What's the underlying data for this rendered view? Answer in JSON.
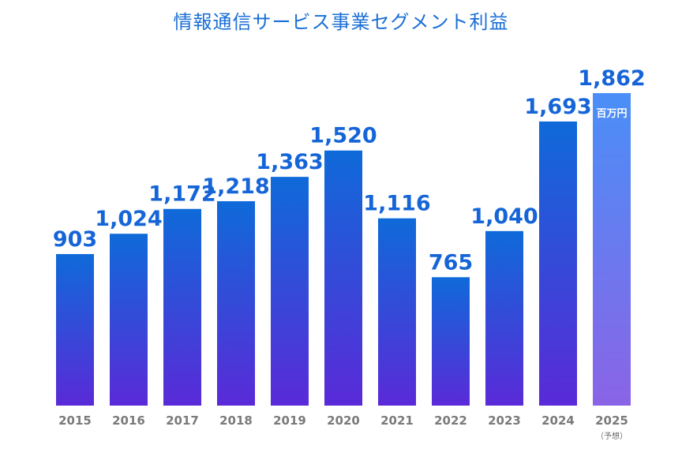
{
  "chart_data": {
    "type": "bar",
    "title": "情報通信サービス事業セグメント利益",
    "unit": "百万円",
    "categories": [
      "2015",
      "2016",
      "2017",
      "2018",
      "2019",
      "2020",
      "2021",
      "2022",
      "2023",
      "2024",
      "2025"
    ],
    "values": [
      903,
      1024,
      1172,
      1218,
      1363,
      1520,
      1116,
      765,
      1040,
      1693,
      1862
    ],
    "value_labels": [
      "903",
      "1,024",
      "1,172",
      "1,218",
      "1,363",
      "1,520",
      "1,116",
      "765",
      "1,040",
      "1,693",
      "1,862"
    ],
    "forecast_note": "（予想）",
    "forecast_category": "2025",
    "ylim": [
      0,
      1862
    ],
    "grid": false,
    "legend": "none",
    "colors": {
      "bar_top": "#0f6ad9",
      "bar_bottom": "#5a2ad8",
      "forecast_top": "#4a8ff7",
      "forecast_bottom": "#8a64e6",
      "label": "#1565d8",
      "title": "#1a6fd6"
    }
  }
}
